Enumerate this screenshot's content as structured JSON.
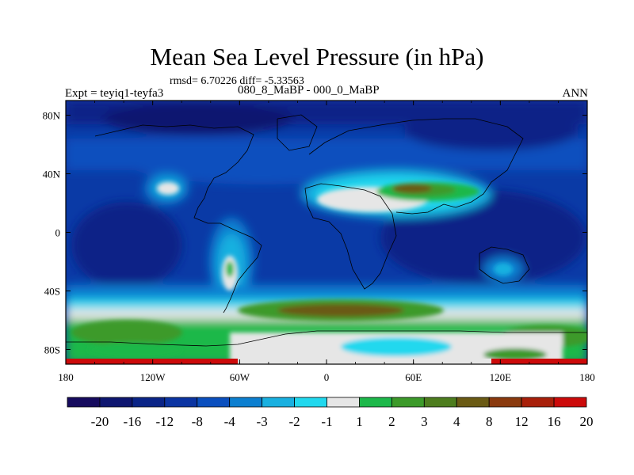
{
  "title": "Mean Sea Level Pressure (in hPa)",
  "stats": "rmsd= 6.70226 diff= -5.33563",
  "experiment": "Expt = teyiq1-teyfa3",
  "comparison": "080_8_MaBP - 000_0_MaBP",
  "season": "ANN",
  "axes": {
    "x_ticks": [
      "180",
      "120W",
      "60W",
      "0",
      "60E",
      "120E",
      "180"
    ],
    "y_ticks": [
      "80N",
      "40N",
      "0",
      "40S",
      "80S"
    ]
  },
  "colorbar": {
    "labels": [
      "-20",
      "-16",
      "-12",
      "-8",
      "-4",
      "-3",
      "-2",
      "-1",
      "1",
      "2",
      "3",
      "4",
      "8",
      "12",
      "16",
      "20"
    ],
    "colors": [
      "#160b5e",
      "#0e1670",
      "#0a2487",
      "#0b34a2",
      "#0a4fbe",
      "#0c7fd0",
      "#19b0e0",
      "#21d8ee",
      "#e6e6e6",
      "#1db84a",
      "#3c9a2a",
      "#4d7d1e",
      "#6a5a14",
      "#8a3a0e",
      "#a8200a",
      "#cc0a0a"
    ]
  },
  "colors": {
    "ocean_base": "#0a3aa6",
    "deep_low": "#0a2487",
    "shallow": "#0a4fbe",
    "light": "#19b0e0",
    "near_zero": "#e6e6e6",
    "positive": "#1db84a",
    "strong_positive": "#6a5a14",
    "max_positive": "#cc0a0a"
  }
}
